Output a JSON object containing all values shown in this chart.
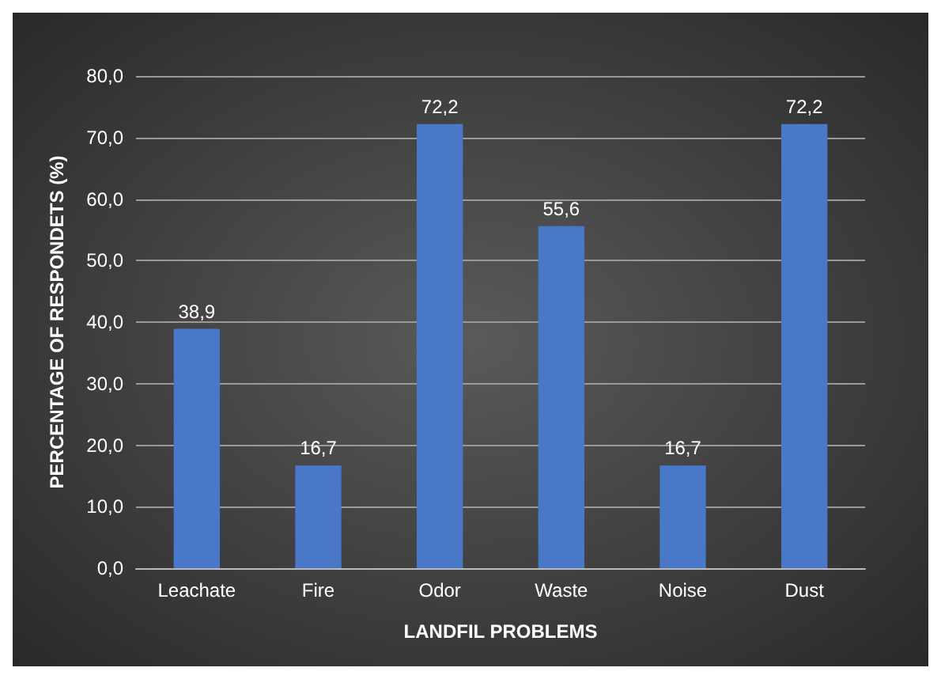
{
  "chart_data": {
    "type": "bar",
    "xlabel": "LANDFIL PROBLEMS",
    "ylabel": "PERCENTAGE OF RESPONDETS (%)",
    "categories": [
      "Leachate",
      "Fire",
      "Odor",
      "Waste",
      "Noise",
      "Dust"
    ],
    "values": [
      38.9,
      16.7,
      72.2,
      55.6,
      16.7,
      72.2
    ],
    "value_labels": [
      "38,9",
      "16,7",
      "72,2",
      "55,6",
      "16,7",
      "72,2"
    ],
    "color": "#4a78c8",
    "ylim": [
      0,
      80
    ],
    "yticks": [
      {
        "value": 0,
        "label": "0,0"
      },
      {
        "value": 10,
        "label": "10,0"
      },
      {
        "value": 20,
        "label": "20,0"
      },
      {
        "value": 30,
        "label": "30,0"
      },
      {
        "value": 40,
        "label": "40,0"
      },
      {
        "value": 50,
        "label": "50,0"
      },
      {
        "value": 60,
        "label": "60,0"
      },
      {
        "value": 70,
        "label": "70,0"
      },
      {
        "value": 80,
        "label": "80,0"
      }
    ],
    "grid": "y"
  }
}
